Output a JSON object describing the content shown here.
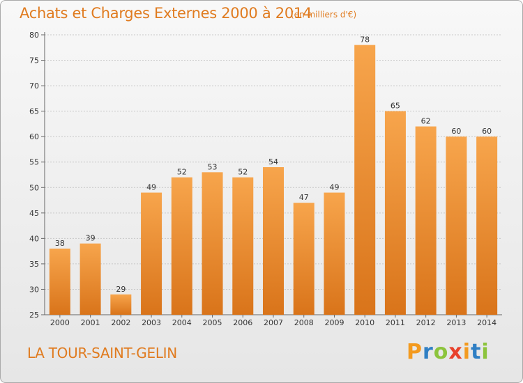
{
  "header": {
    "title": "Achats et Charges Externes 2000 à 2014",
    "subtitle": "(en milliers d'€)"
  },
  "footer": {
    "place": "LA TOUR-SAINT-GELIN",
    "logo_letters": [
      "P",
      "r",
      "o",
      "x",
      "i",
      "t",
      "i"
    ],
    "logo_colors": [
      "#f39a1f",
      "#2f7fc4",
      "#8cc43c",
      "#e8412b",
      "#f39a1f",
      "#2f7fc4",
      "#8cc43c"
    ]
  },
  "colors": {
    "bar_light": "#f7a54c",
    "bar_dark": "#d9741a",
    "grid": "#c8c8c8"
  },
  "chart_data": {
    "type": "bar",
    "title": "Achats et Charges Externes 2000 à 2014",
    "subtitle": "(en milliers d'€)",
    "categories": [
      "2000",
      "2001",
      "2002",
      "2003",
      "2004",
      "2005",
      "2006",
      "2007",
      "2008",
      "2009",
      "2010",
      "2011",
      "2012",
      "2013",
      "2014"
    ],
    "values": [
      38,
      39,
      29,
      49,
      52,
      53,
      52,
      54,
      47,
      49,
      78,
      65,
      62,
      60,
      60
    ],
    "ylim": [
      25,
      80
    ],
    "yticks": [
      25,
      30,
      35,
      40,
      45,
      50,
      55,
      60,
      65,
      70,
      75,
      80
    ],
    "grid": true,
    "data_labels": true
  }
}
